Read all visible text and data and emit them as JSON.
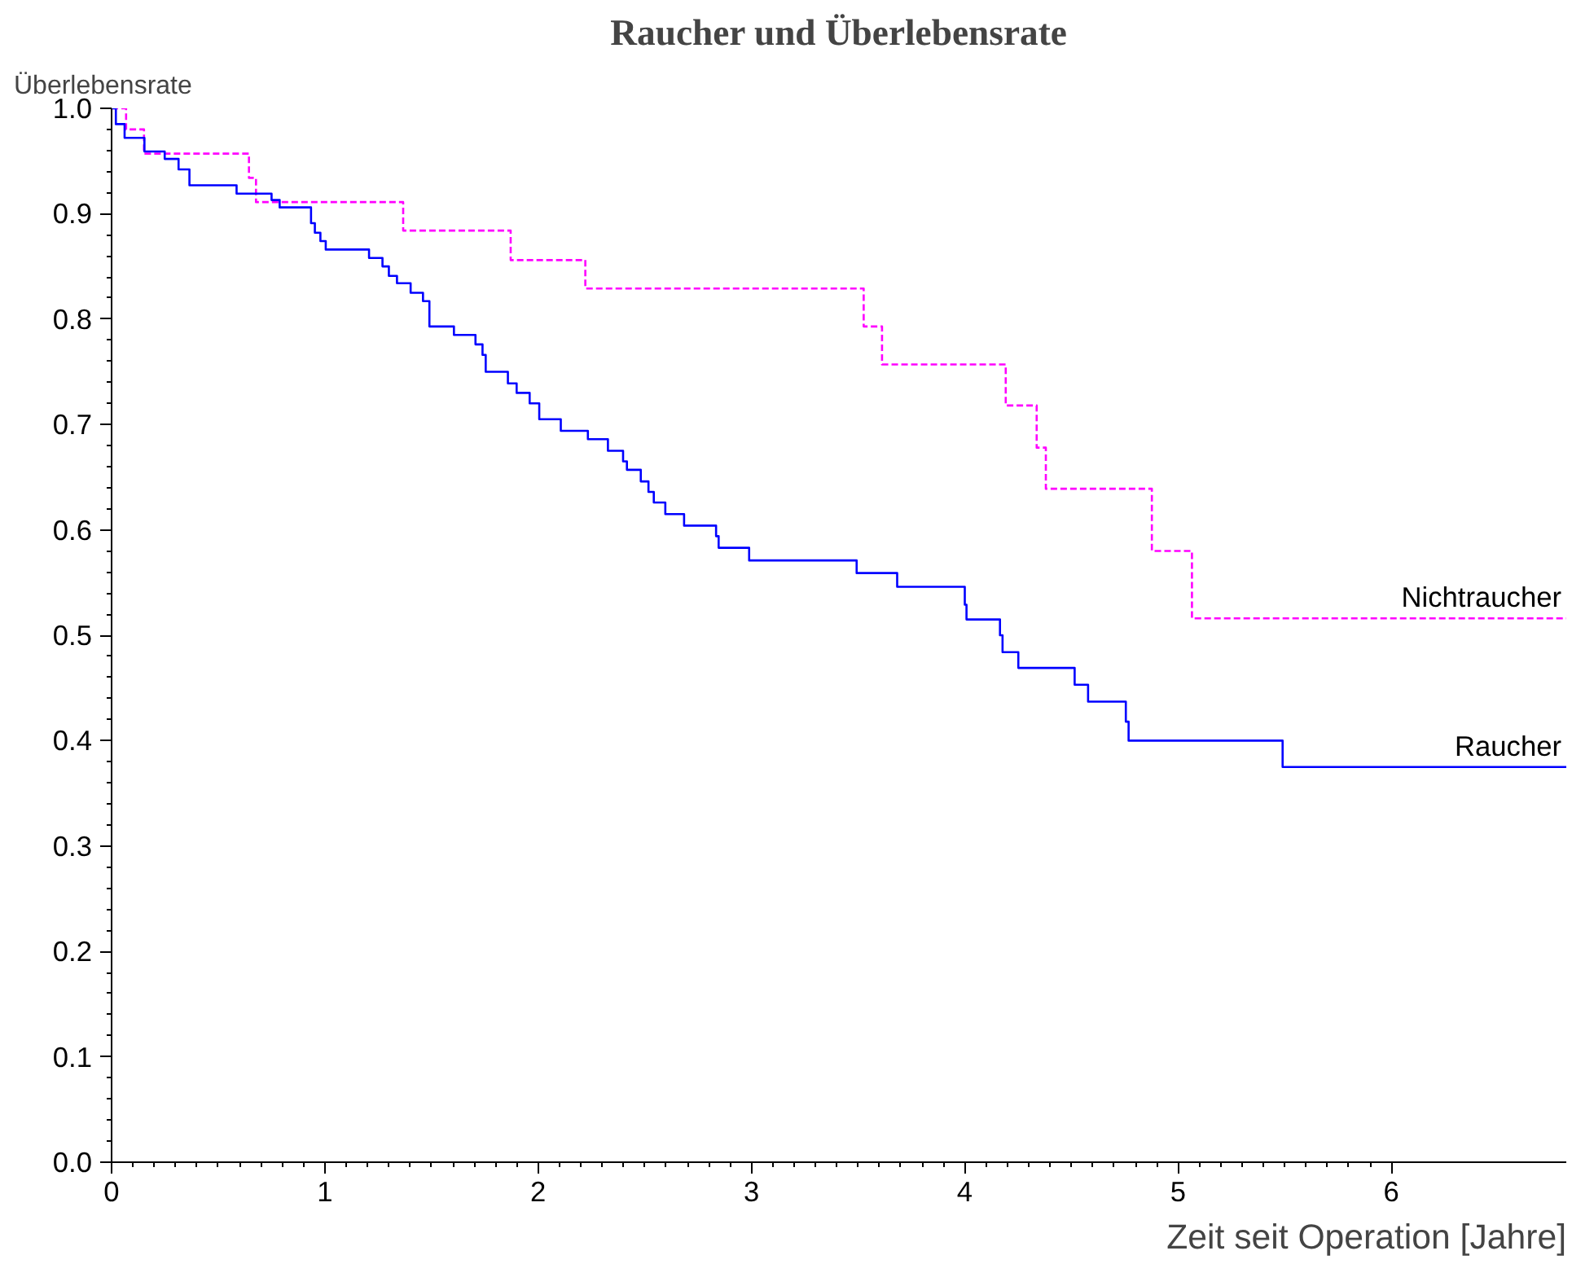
{
  "chart_data": {
    "type": "step",
    "title": "Raucher und Überlebensrate",
    "xlabel": "Zeit seit Operation [Jahre]",
    "ylabel": "Überlebensrate",
    "xlim": [
      0,
      6.82
    ],
    "ylim": [
      0,
      1.0
    ],
    "xticks": [
      0,
      1,
      2,
      3,
      4,
      5,
      6
    ],
    "yticks": [
      {
        "value": 0,
        "label": "0.0"
      },
      0.1,
      0.2,
      0.3,
      0.4,
      0.5,
      0.6,
      0.7,
      0.8,
      0.9,
      {
        "value": 1,
        "label": "1.0"
      }
    ],
    "grid": false,
    "line_style": "solid",
    "series": [
      {
        "name": "Nichtraucher",
        "color": "#ff00ff",
        "line_style": "dashed",
        "x": [
          0,
          0.068,
          0.152,
          0.644,
          0.677,
          1.367,
          1.871,
          2.221,
          3.526,
          3.612,
          4.192,
          4.337,
          4.38,
          4.877,
          5.065,
          6.82
        ],
        "values": [
          1.0,
          0.98,
          0.957,
          0.934,
          0.911,
          0.884,
          0.856,
          0.829,
          0.793,
          0.757,
          0.718,
          0.678,
          0.639,
          0.58,
          0.516,
          0.516
        ]
      },
      {
        "name": "Raucher",
        "color": "#0000ff",
        "x": [
          0,
          0.02,
          0.061,
          0.154,
          0.249,
          0.314,
          0.365,
          0.586,
          0.75,
          0.788,
          0.935,
          0.953,
          0.979,
          1.004,
          1.207,
          1.27,
          1.3,
          1.338,
          1.402,
          1.46,
          1.49,
          1.605,
          1.706,
          1.739,
          1.754,
          1.858,
          1.899,
          1.96,
          2.005,
          2.106,
          2.233,
          2.327,
          2.398,
          2.416,
          2.481,
          2.517,
          2.542,
          2.596,
          2.684,
          2.834,
          2.846,
          2.989,
          3.493,
          3.683,
          4.0,
          4.008,
          4.165,
          4.177,
          4.251,
          4.515,
          4.578,
          4.755,
          4.768,
          5.49,
          6.82
        ],
        "values": [
          1.0,
          0.985,
          0.972,
          0.959,
          0.952,
          0.942,
          0.927,
          0.919,
          0.913,
          0.906,
          0.891,
          0.882,
          0.874,
          0.866,
          0.858,
          0.85,
          0.841,
          0.834,
          0.825,
          0.817,
          0.793,
          0.785,
          0.776,
          0.766,
          0.75,
          0.739,
          0.73,
          0.72,
          0.705,
          0.694,
          0.686,
          0.675,
          0.665,
          0.657,
          0.646,
          0.636,
          0.626,
          0.615,
          0.604,
          0.594,
          0.583,
          0.571,
          0.559,
          0.546,
          0.529,
          0.515,
          0.5,
          0.484,
          0.469,
          0.453,
          0.437,
          0.418,
          0.4,
          0.375,
          0.375
        ]
      }
    ]
  }
}
